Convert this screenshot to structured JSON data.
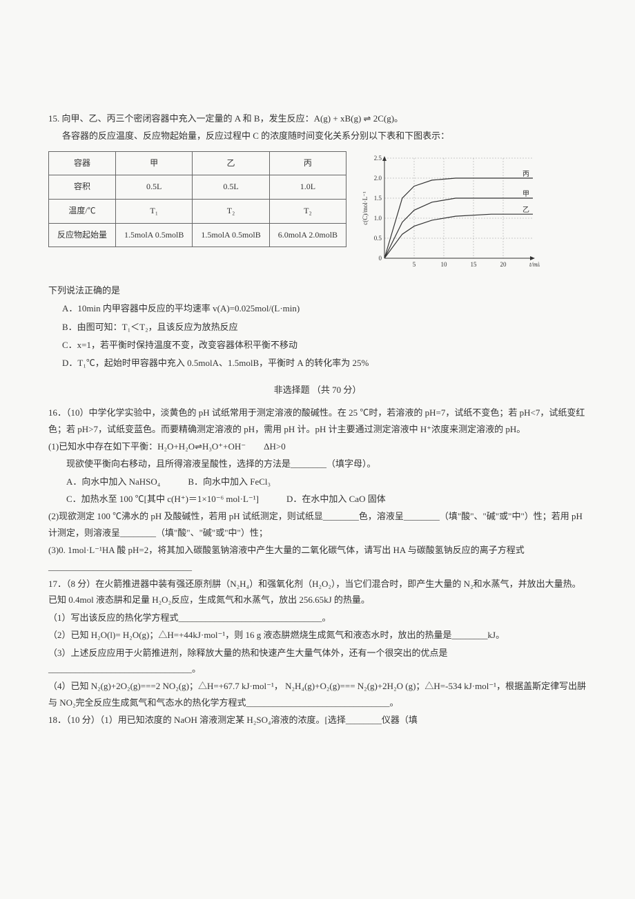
{
  "q15": {
    "stem": "15. 向甲、乙、丙三个密闭容器中充入一定量的 A 和 B，发生反应：A(g) + xB(g) ⇌ 2C(g)。",
    "stem2": "各容器的反应温度、反应物起始量，反应过程中 C 的浓度随时间变化关系分别以下表和下图表示：",
    "table": {
      "headers": [
        "容器",
        "甲",
        "乙",
        "丙"
      ],
      "rows": [
        [
          "容积",
          "0.5L",
          "0.5L",
          "1.0L"
        ],
        [
          "温度/℃",
          "T₁",
          "T₂",
          "T₂"
        ],
        [
          "反应物起始量",
          "1.5molA 0.5molB",
          "1.5molA 0.5molB",
          "6.0molA 2.0molB"
        ]
      ]
    },
    "chart": {
      "ylabel": "c(C)/mol·L⁻¹",
      "xlabel": "t/min",
      "ymax": 2.5,
      "ymin": 0,
      "ytick": 0.5,
      "xticks": [
        5,
        10,
        15,
        20
      ],
      "series": [
        {
          "label": "丙",
          "data": [
            [
              0,
              0
            ],
            [
              3,
              1.5
            ],
            [
              5,
              1.8
            ],
            [
              8,
              1.95
            ],
            [
              12,
              2.0
            ],
            [
              20,
              2.0
            ],
            [
              25,
              2.0
            ]
          ],
          "color": "#333"
        },
        {
          "label": "甲",
          "data": [
            [
              0,
              0
            ],
            [
              3,
              0.9
            ],
            [
              5,
              1.2
            ],
            [
              8,
              1.4
            ],
            [
              12,
              1.5
            ],
            [
              20,
              1.5
            ],
            [
              25,
              1.5
            ]
          ],
          "color": "#333"
        },
        {
          "label": "乙",
          "data": [
            [
              0,
              0
            ],
            [
              3,
              0.6
            ],
            [
              5,
              0.8
            ],
            [
              8,
              0.95
            ],
            [
              12,
              1.05
            ],
            [
              18,
              1.1
            ],
            [
              25,
              1.1
            ]
          ],
          "color": "#333"
        }
      ],
      "grid_color": "#999",
      "bg_color": "#f8f8f6"
    },
    "ask": "下列说法正确的是",
    "options": {
      "A": "A．10min 内甲容器中反应的平均速率 v(A)=0.025mol/(L·min)",
      "B": "B．由图可知：T₁＜T₂，且该反应为放热反应",
      "C": "C．x=1，若平衡时保持温度不变，改变容器体积平衡不移动",
      "D": "D．T₁℃，起始时甲容器中充入 0.5molA、1.5molB，平衡时 A 的转化率为 25%"
    }
  },
  "section2_title": "非选择题 （共 70 分）",
  "q16": {
    "stem": "16．（10）中学化学实验中，淡黄色的 pH 试纸常用于测定溶液的酸碱性。在 25 ℃时，若溶液的 pH=7，试纸不变色；若 pH<7，试纸变红色；若 pH>7，试纸变蓝色。而要精确测定溶液的 pH，需用 pH 计。pH 计主要通过测定溶液中 H⁺浓度来测定溶液的 pH。",
    "p1": "(1)已知水中存在如下平衡：H₂O+H₂O⇌H₃O⁺+OH⁻　　ΔH>0",
    "p1b": "现欲使平衡向右移动，且所得溶液呈酸性，选择的方法是________（填字母）。",
    "p1_opts": {
      "A": "A．向水中加入 NaHSO₄",
      "B": "B．向水中加入 FeCl₃",
      "C": "C．加热水至 100 ℃[其中 c(H⁺)＝1×10⁻⁶ mol·L⁻¹]",
      "D": "D．在水中加入 CaO 固体"
    },
    "p2": "(2)现欲测定 100 ℃沸水的 pH 及酸碱性，若用 pH 试纸测定，则试纸显________色，溶液呈________（填\"酸\"、\"碱\"或\"中\"）性；若用 pH 计测定，则溶液呈________（填\"酸\"、\"碱\"或\"中\"）性；",
    "p3": "(3)0. 1mol·L⁻¹HA 酸 pH=2，将其加入碳酸氢钠溶液中产生大量的二氧化碳气体，请写出 HA 与碳酸氢钠反应的离子方程式________________________________"
  },
  "q17": {
    "stem": "17．（8 分）在火箭推进器中装有强还原剂肼（N₂H₄）和强氧化剂（H₂O₂），当它们混合时，即产生大量的 N₂和水蒸气，并放出大量热。已知 0.4mol 液态肼和足量 H₂O₂反应，生成氮气和水蒸气，放出 256.65kJ 的热量。",
    "p1": "（1）写出该反应的热化学方程式________________________________。",
    "p2": "（2）已知 H₂O(l)= H₂O(g)；△H=+44kJ·mol⁻¹，则 16 g 液态肼燃烧生成氮气和液态水时，放出的热量是________kJ。",
    "p3": "（3）上述反应应用于火箭推进剂，除释放大量的热和快速产生大量气体外，还有一个很突出的优点是________________________________。",
    "p4": "（4）已知 N₂(g)+2O₂(g)===2 NO₂(g)；△H=+67.7 kJ·mol⁻¹，  N₂H₄(g)+O₂(g)=== N₂(g)+2H₂O (g)；△H=-534 kJ·mol⁻¹，根据盖斯定律写出肼与 NO₂完全反应生成氮气和气态水的热化学方程式________________________________。"
  },
  "q18": {
    "stem": "18．（10 分）（1）用已知浓度的 NaOH 溶液测定某 H₂SO₄溶液的浓度。[选择________仪器（填"
  }
}
